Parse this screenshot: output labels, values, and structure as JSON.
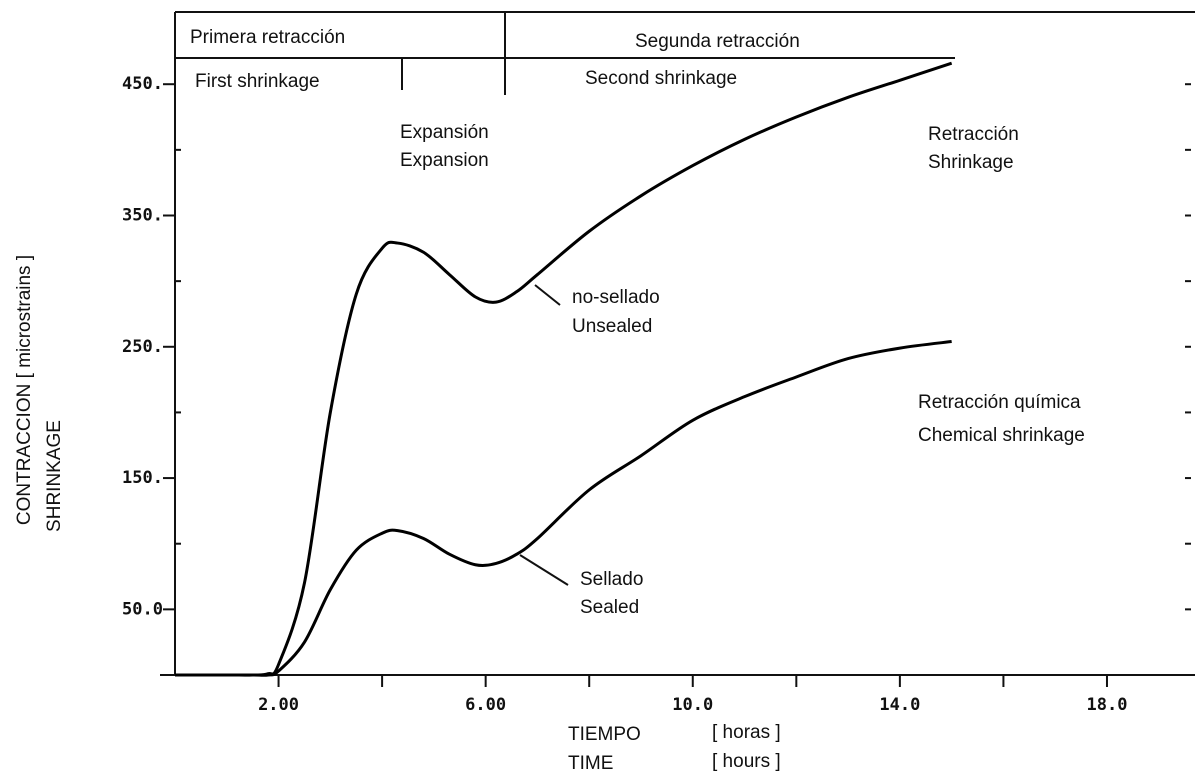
{
  "chart_data": {
    "type": "line",
    "x": [
      0,
      1,
      1.5,
      1.8,
      2,
      2.5,
      3,
      3.5,
      4,
      4.3,
      4.8,
      5.3,
      5.8,
      6.2,
      6.6,
      7,
      8,
      9,
      10,
      11,
      12,
      13,
      14,
      15
    ],
    "series": [
      {
        "color": "#000000",
        "values": [
          0,
          0,
          0,
          1,
          8,
          70,
          200,
          290,
          325,
          329,
          322,
          305,
          288,
          284,
          292,
          305,
          338,
          365,
          388,
          408,
          425,
          440,
          453,
          466
        ]
      },
      {
        "color": "#000000",
        "values": [
          0,
          0,
          0,
          0,
          3,
          25,
          65,
          95,
          108,
          110,
          104,
          92,
          84,
          85,
          92,
          104,
          141,
          167,
          194,
          212,
          227,
          241,
          249,
          254
        ]
      }
    ],
    "xlim": [
      0,
      19.7
    ],
    "ylim": [
      0,
      505
    ],
    "xticks": [
      {
        "value": 2,
        "label": "2.00"
      },
      {
        "value": 6,
        "label": "6.00"
      },
      {
        "value": 10,
        "label": "10.0"
      },
      {
        "value": 14,
        "label": "14.0"
      },
      {
        "value": 18,
        "label": "18.0"
      }
    ],
    "xminorticks": [
      4,
      8,
      12,
      16
    ],
    "yticks": [
      {
        "value": 50,
        "label": "50.0"
      },
      {
        "value": 150,
        "label": "150."
      },
      {
        "value": 250,
        "label": "250."
      },
      {
        "value": 350,
        "label": "350."
      },
      {
        "value": 450,
        "label": "450."
      }
    ],
    "yminorticks": [
      100,
      200,
      300,
      400
    ],
    "x_label": [
      "TIEMPO",
      "[ horas ]",
      "TIME",
      "[ hours ]"
    ],
    "y_label": [
      "CONTRACCION  [ microstrains ]",
      "SHRINKAGE"
    ],
    "annotations": [
      "Primera retracción",
      "Segunda retracción",
      "First shrinkage",
      "Second shrinkage",
      "Expansión",
      "Expansion",
      "Retracción",
      "Shrinkage",
      "no-sellado",
      "Unsealed",
      "Retracción química",
      "Chemical shrinkage",
      "Sellado",
      "Sealed"
    ]
  }
}
